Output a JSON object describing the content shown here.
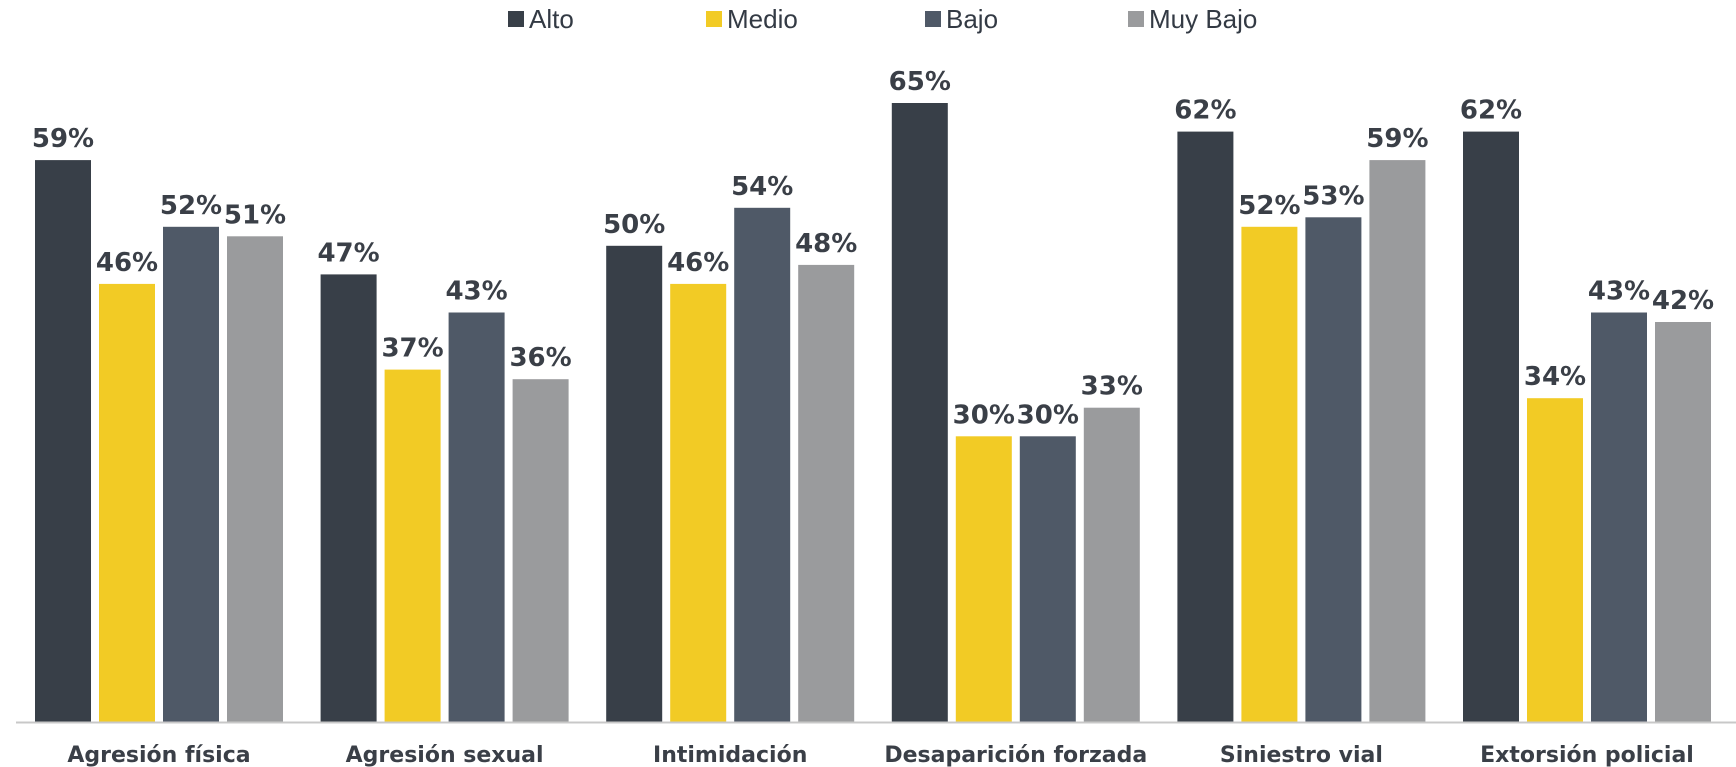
{
  "chart_data": {
    "type": "bar",
    "categories": [
      "Agresión física",
      "Agresión sexual",
      "Intimidación",
      "Desaparición forzada",
      "Siniestro vial",
      "Extorsión policial"
    ],
    "series": [
      {
        "name": "Alto",
        "color": "#383f48",
        "values": [
          59,
          47,
          50,
          65,
          62,
          62
        ]
      },
      {
        "name": "Medio",
        "color": "#f2cb25",
        "values": [
          46,
          37,
          46,
          30,
          52,
          34
        ]
      },
      {
        "name": "Bajo",
        "color": "#4f5967",
        "values": [
          52,
          43,
          54,
          30,
          53,
          43
        ]
      },
      {
        "name": "Muy Bajo",
        "color": "#9a9b9d",
        "values": [
          51,
          36,
          48,
          33,
          59,
          42
        ]
      }
    ],
    "value_suffix": "%",
    "ylim": [
      0,
      65
    ],
    "legend_position": "top",
    "grid": false,
    "axis_color": "#c8c8c8"
  }
}
